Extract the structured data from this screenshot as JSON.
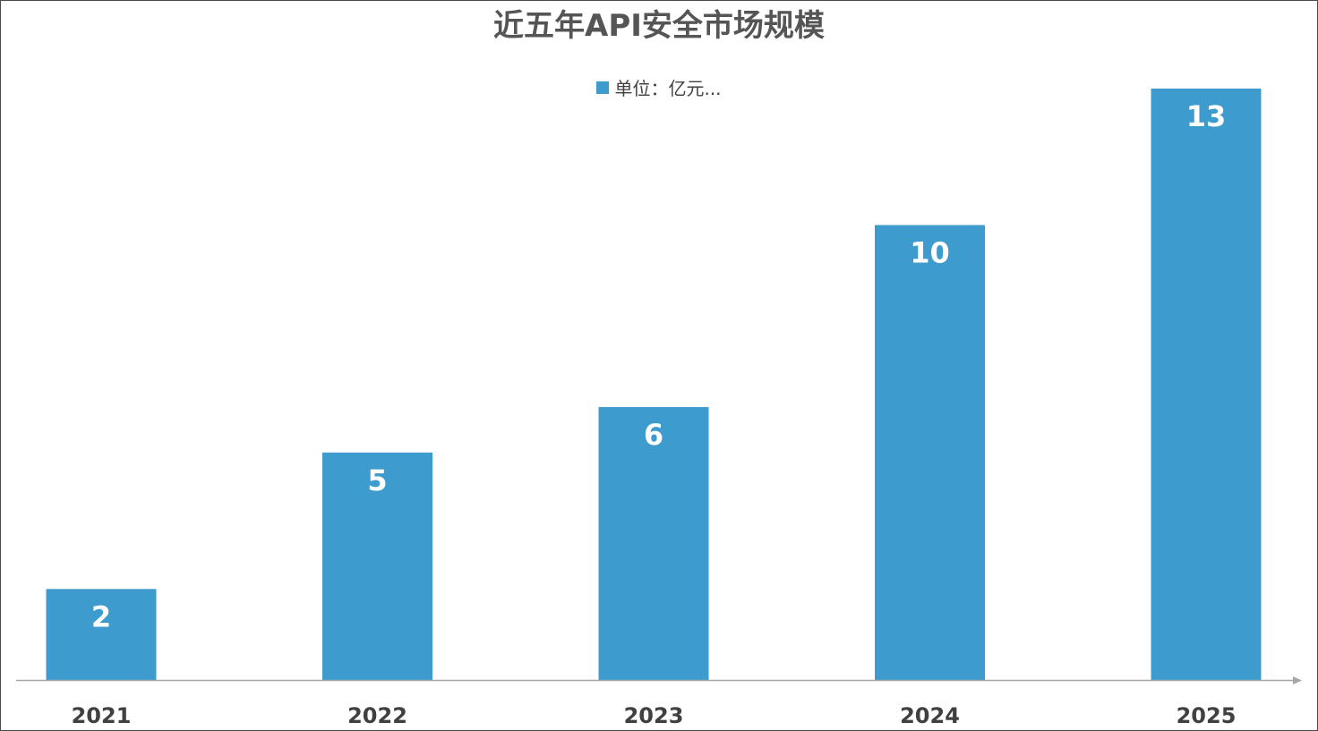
{
  "chart_data": {
    "type": "bar",
    "title": "近五年API安全市场规模",
    "categories": [
      "2021",
      "2022",
      "2023",
      "2024",
      "2025"
    ],
    "series": [
      {
        "name": "单位：亿元...",
        "values": [
          2,
          5,
          6,
          10,
          13
        ]
      }
    ],
    "data_labels": [
      "2",
      "5",
      "6",
      "10",
      "13"
    ],
    "xlabel": "",
    "ylabel": "",
    "ylim": [
      0,
      13.9
    ],
    "grid": false,
    "legend_position": "top-center",
    "bar_color": "#3d9bcd",
    "axis_color": "#a6a6a6"
  }
}
